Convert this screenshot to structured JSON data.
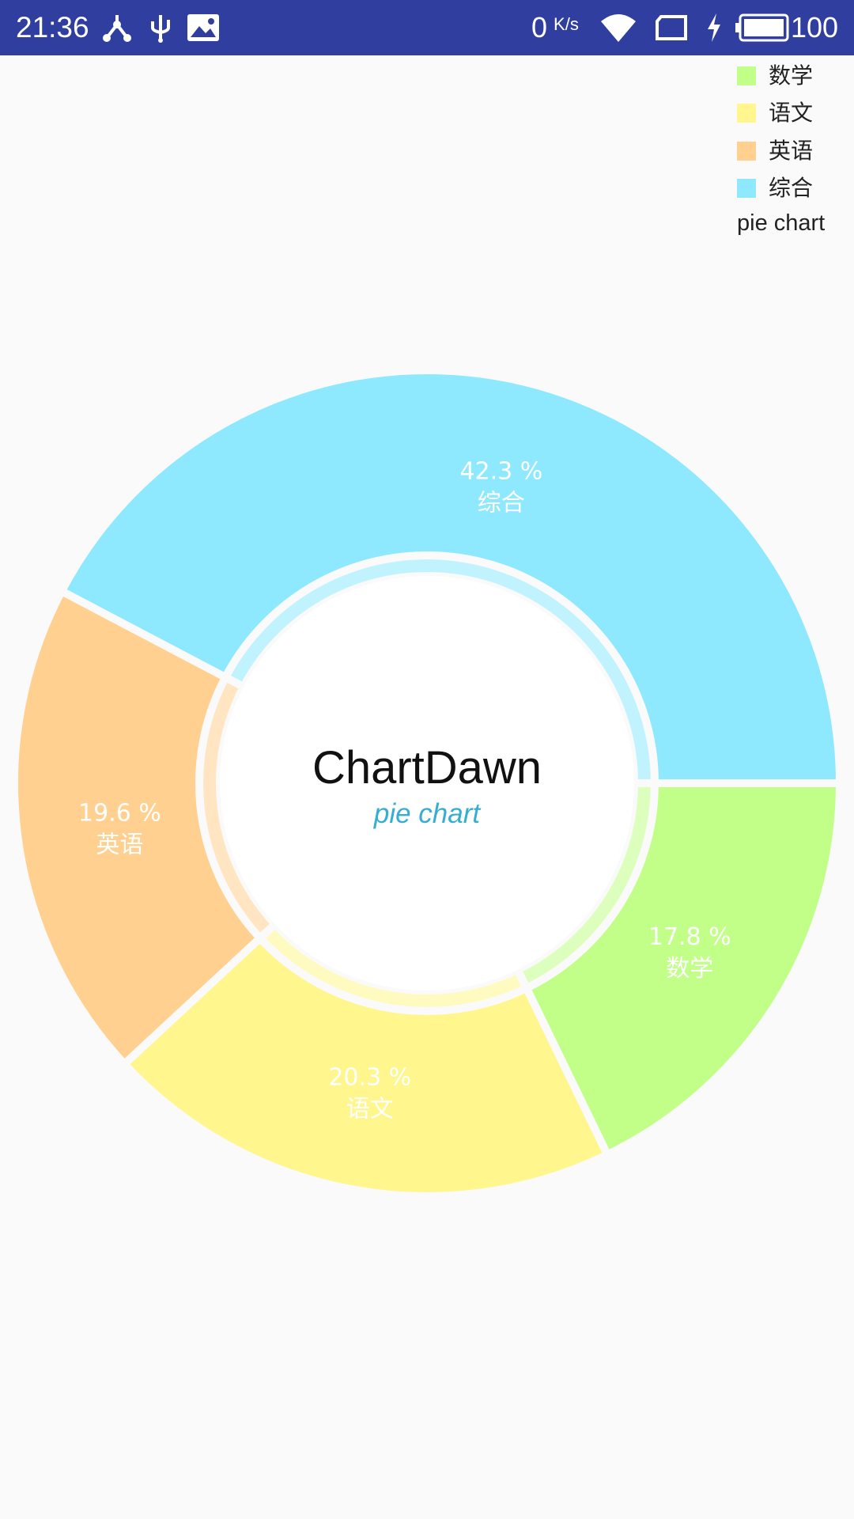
{
  "status_bar": {
    "time": "21:36",
    "net_speed": "0",
    "net_speed_unit": "K/s",
    "battery_level": "100",
    "icons": [
      "share-icon",
      "usb-icon",
      "image-icon",
      "wifi-icon",
      "sim-icon",
      "charging-icon",
      "battery-icon"
    ]
  },
  "legend": {
    "items": [
      {
        "label": "数学",
        "color": "#c1ff89"
      },
      {
        "label": "语文",
        "color": "#fff68d"
      },
      {
        "label": "英语",
        "color": "#ffd08f"
      },
      {
        "label": "综合",
        "color": "#8ee9ff"
      }
    ],
    "description": "pie chart"
  },
  "chart_data": {
    "type": "pie",
    "style": "donut",
    "center_text": "ChartDawn",
    "center_subtext": "pie chart",
    "center_subtext_color": "#36aed2",
    "slices": [
      {
        "label": "数学",
        "value": 17.8,
        "display": "17.8 %",
        "color": "#c1ff89"
      },
      {
        "label": "语文",
        "value": 20.3,
        "display": "20.3 %",
        "color": "#fff68d"
      },
      {
        "label": "英语",
        "value": 19.6,
        "display": "19.6 %",
        "color": "#ffd08f"
      },
      {
        "label": "综合",
        "value": 42.3,
        "display": "42.3 %",
        "color": "#8ee9ff"
      }
    ],
    "start_direction": "right (3 o'clock), clockwise",
    "legend_position": "top-right"
  }
}
